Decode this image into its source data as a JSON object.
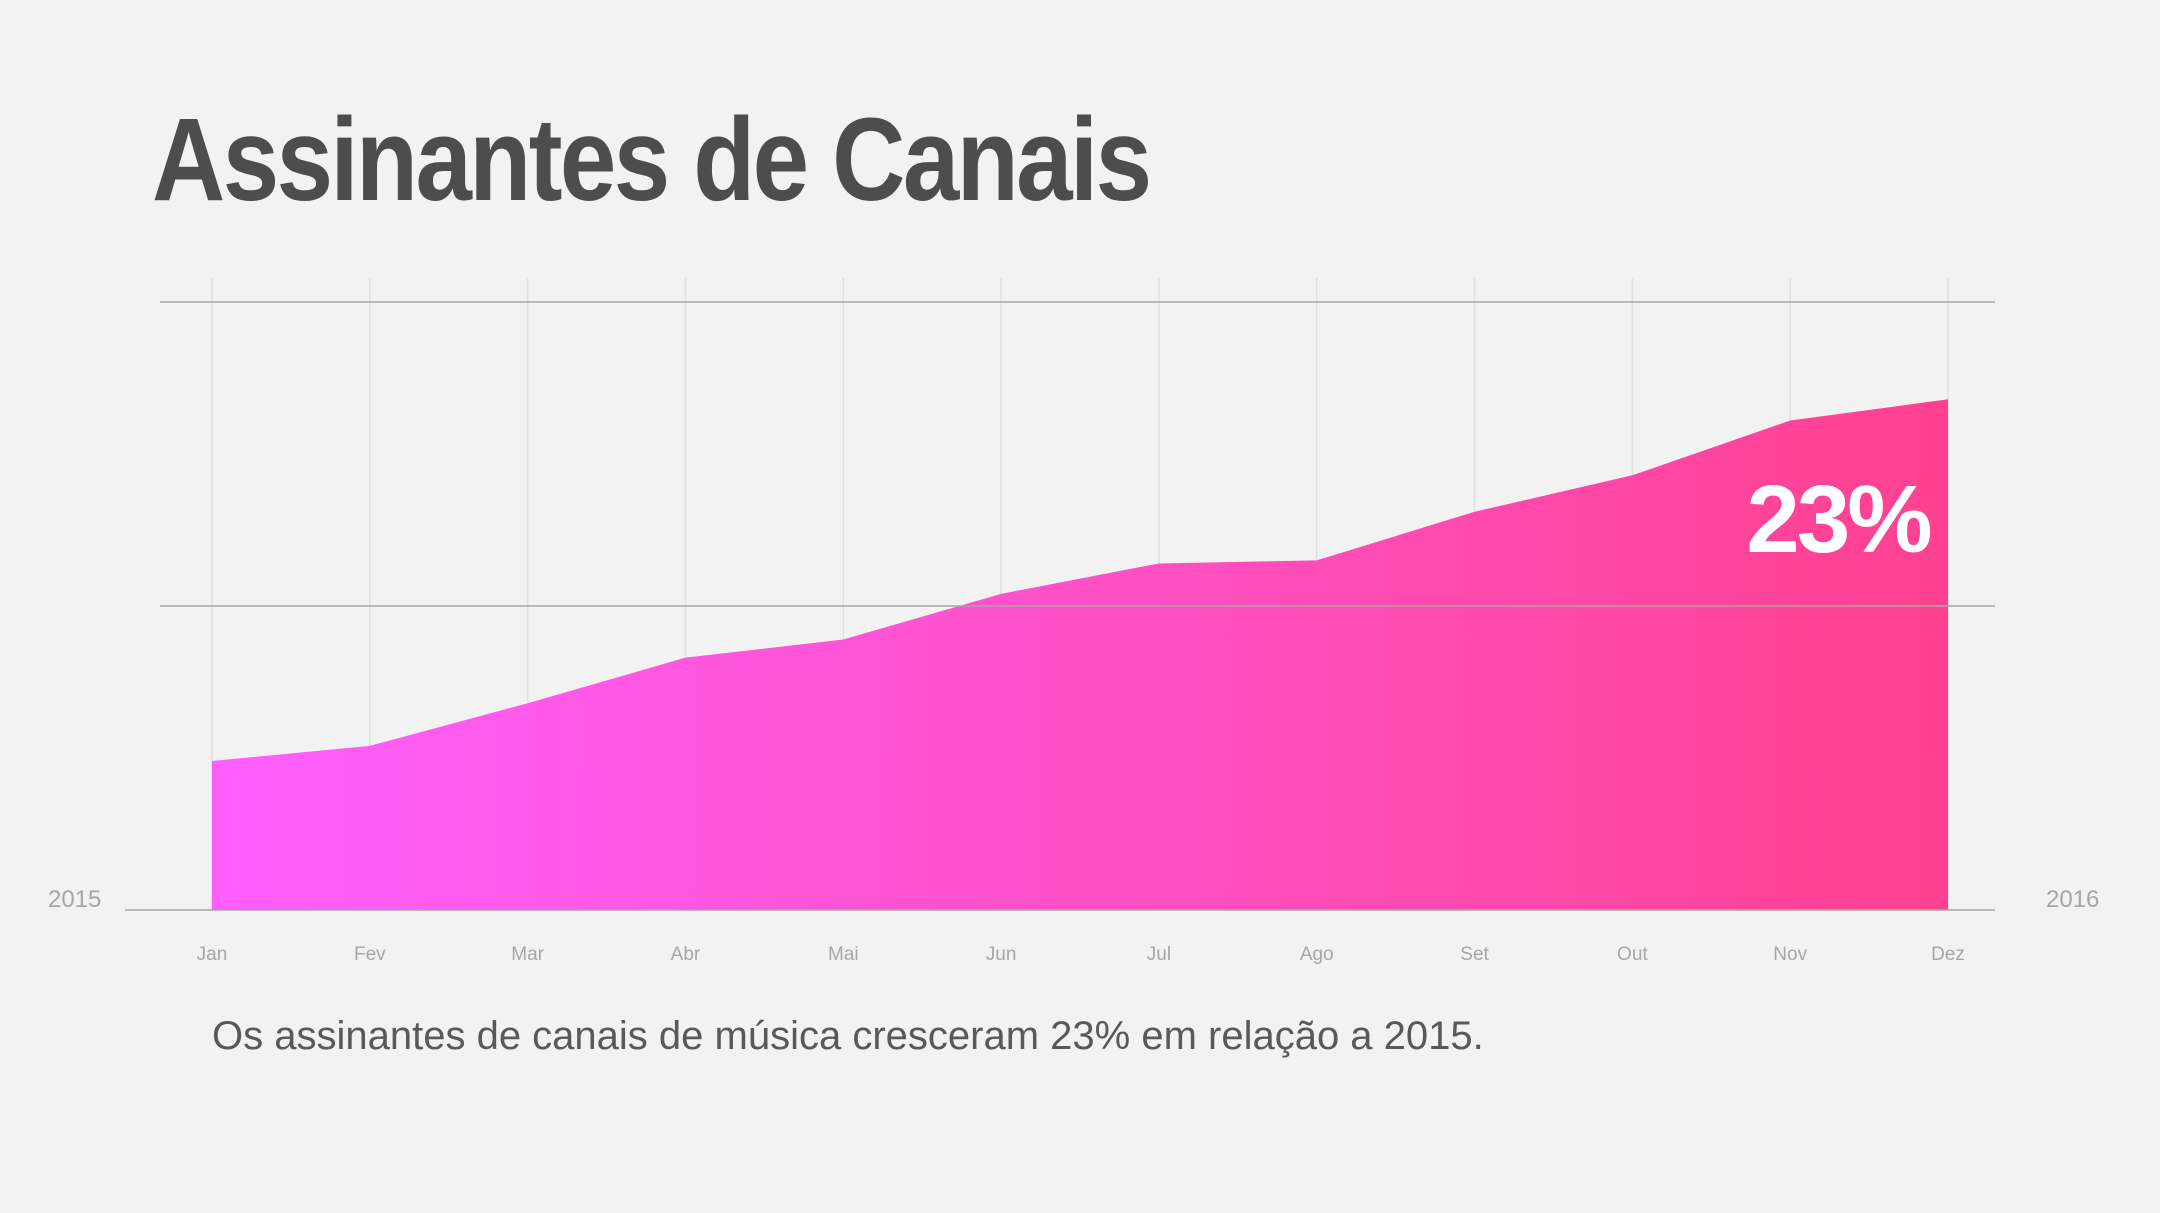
{
  "title": "Assinantes de Canais",
  "caption": "Os assinantes de canais de música cresceram 23% em relação a 2015.",
  "year_start": "2015",
  "year_end": "2016",
  "highlight": "23%",
  "colors": {
    "background": "#f2f2f2",
    "title": "#4d4d4d",
    "gradient_start": "#ff5fff",
    "gradient_end": "#ff418f",
    "gridline": "#a6a6a6",
    "vertical_grid": "#e0e0e0",
    "tick_text": "#a6a6a6"
  },
  "chart_data": {
    "type": "area",
    "title": "Assinantes de Canais",
    "xlabel": "",
    "ylabel": "",
    "categories": [
      "Jan",
      "Fev",
      "Mar",
      "Abr",
      "Mai",
      "Jun",
      "Jul",
      "Ago",
      "Set",
      "Out",
      "Nov",
      "Dez"
    ],
    "values": [
      49,
      54,
      68,
      83,
      89,
      104,
      114,
      115,
      131,
      143,
      161,
      168
    ],
    "ylim": [
      0,
      200
    ],
    "grid": true,
    "annotation": "23%",
    "legend": "none"
  }
}
